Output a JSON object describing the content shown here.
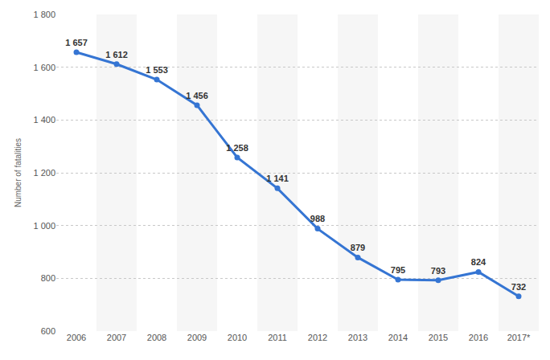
{
  "chart_data": {
    "type": "line",
    "y_label": "Number of fatalities",
    "categories": [
      "2006",
      "2007",
      "2008",
      "2009",
      "2010",
      "2011",
      "2012",
      "2013",
      "2014",
      "2015",
      "2016",
      "2017*"
    ],
    "values": [
      1657,
      1612,
      1553,
      1456,
      1258,
      1141,
      988,
      879,
      795,
      793,
      824,
      732
    ],
    "value_labels": [
      "1 657",
      "1 612",
      "1 553",
      "1 456",
      "1 258",
      "1 141",
      "988",
      "879",
      "795",
      "793",
      "824",
      "732"
    ],
    "color": "#3575d3",
    "marker": "circle",
    "ylim": [
      600,
      1800
    ],
    "yticks": [
      600,
      800,
      {
        "value": 1000,
        "label": "1 000"
      },
      {
        "value": 1200,
        "label": "1 200"
      },
      {
        "value": 1400,
        "label": "1 400"
      },
      {
        "value": 1600,
        "label": "1 600"
      },
      {
        "value": 1800,
        "label": "1 800"
      }
    ],
    "grid": true,
    "data_labels": true
  }
}
